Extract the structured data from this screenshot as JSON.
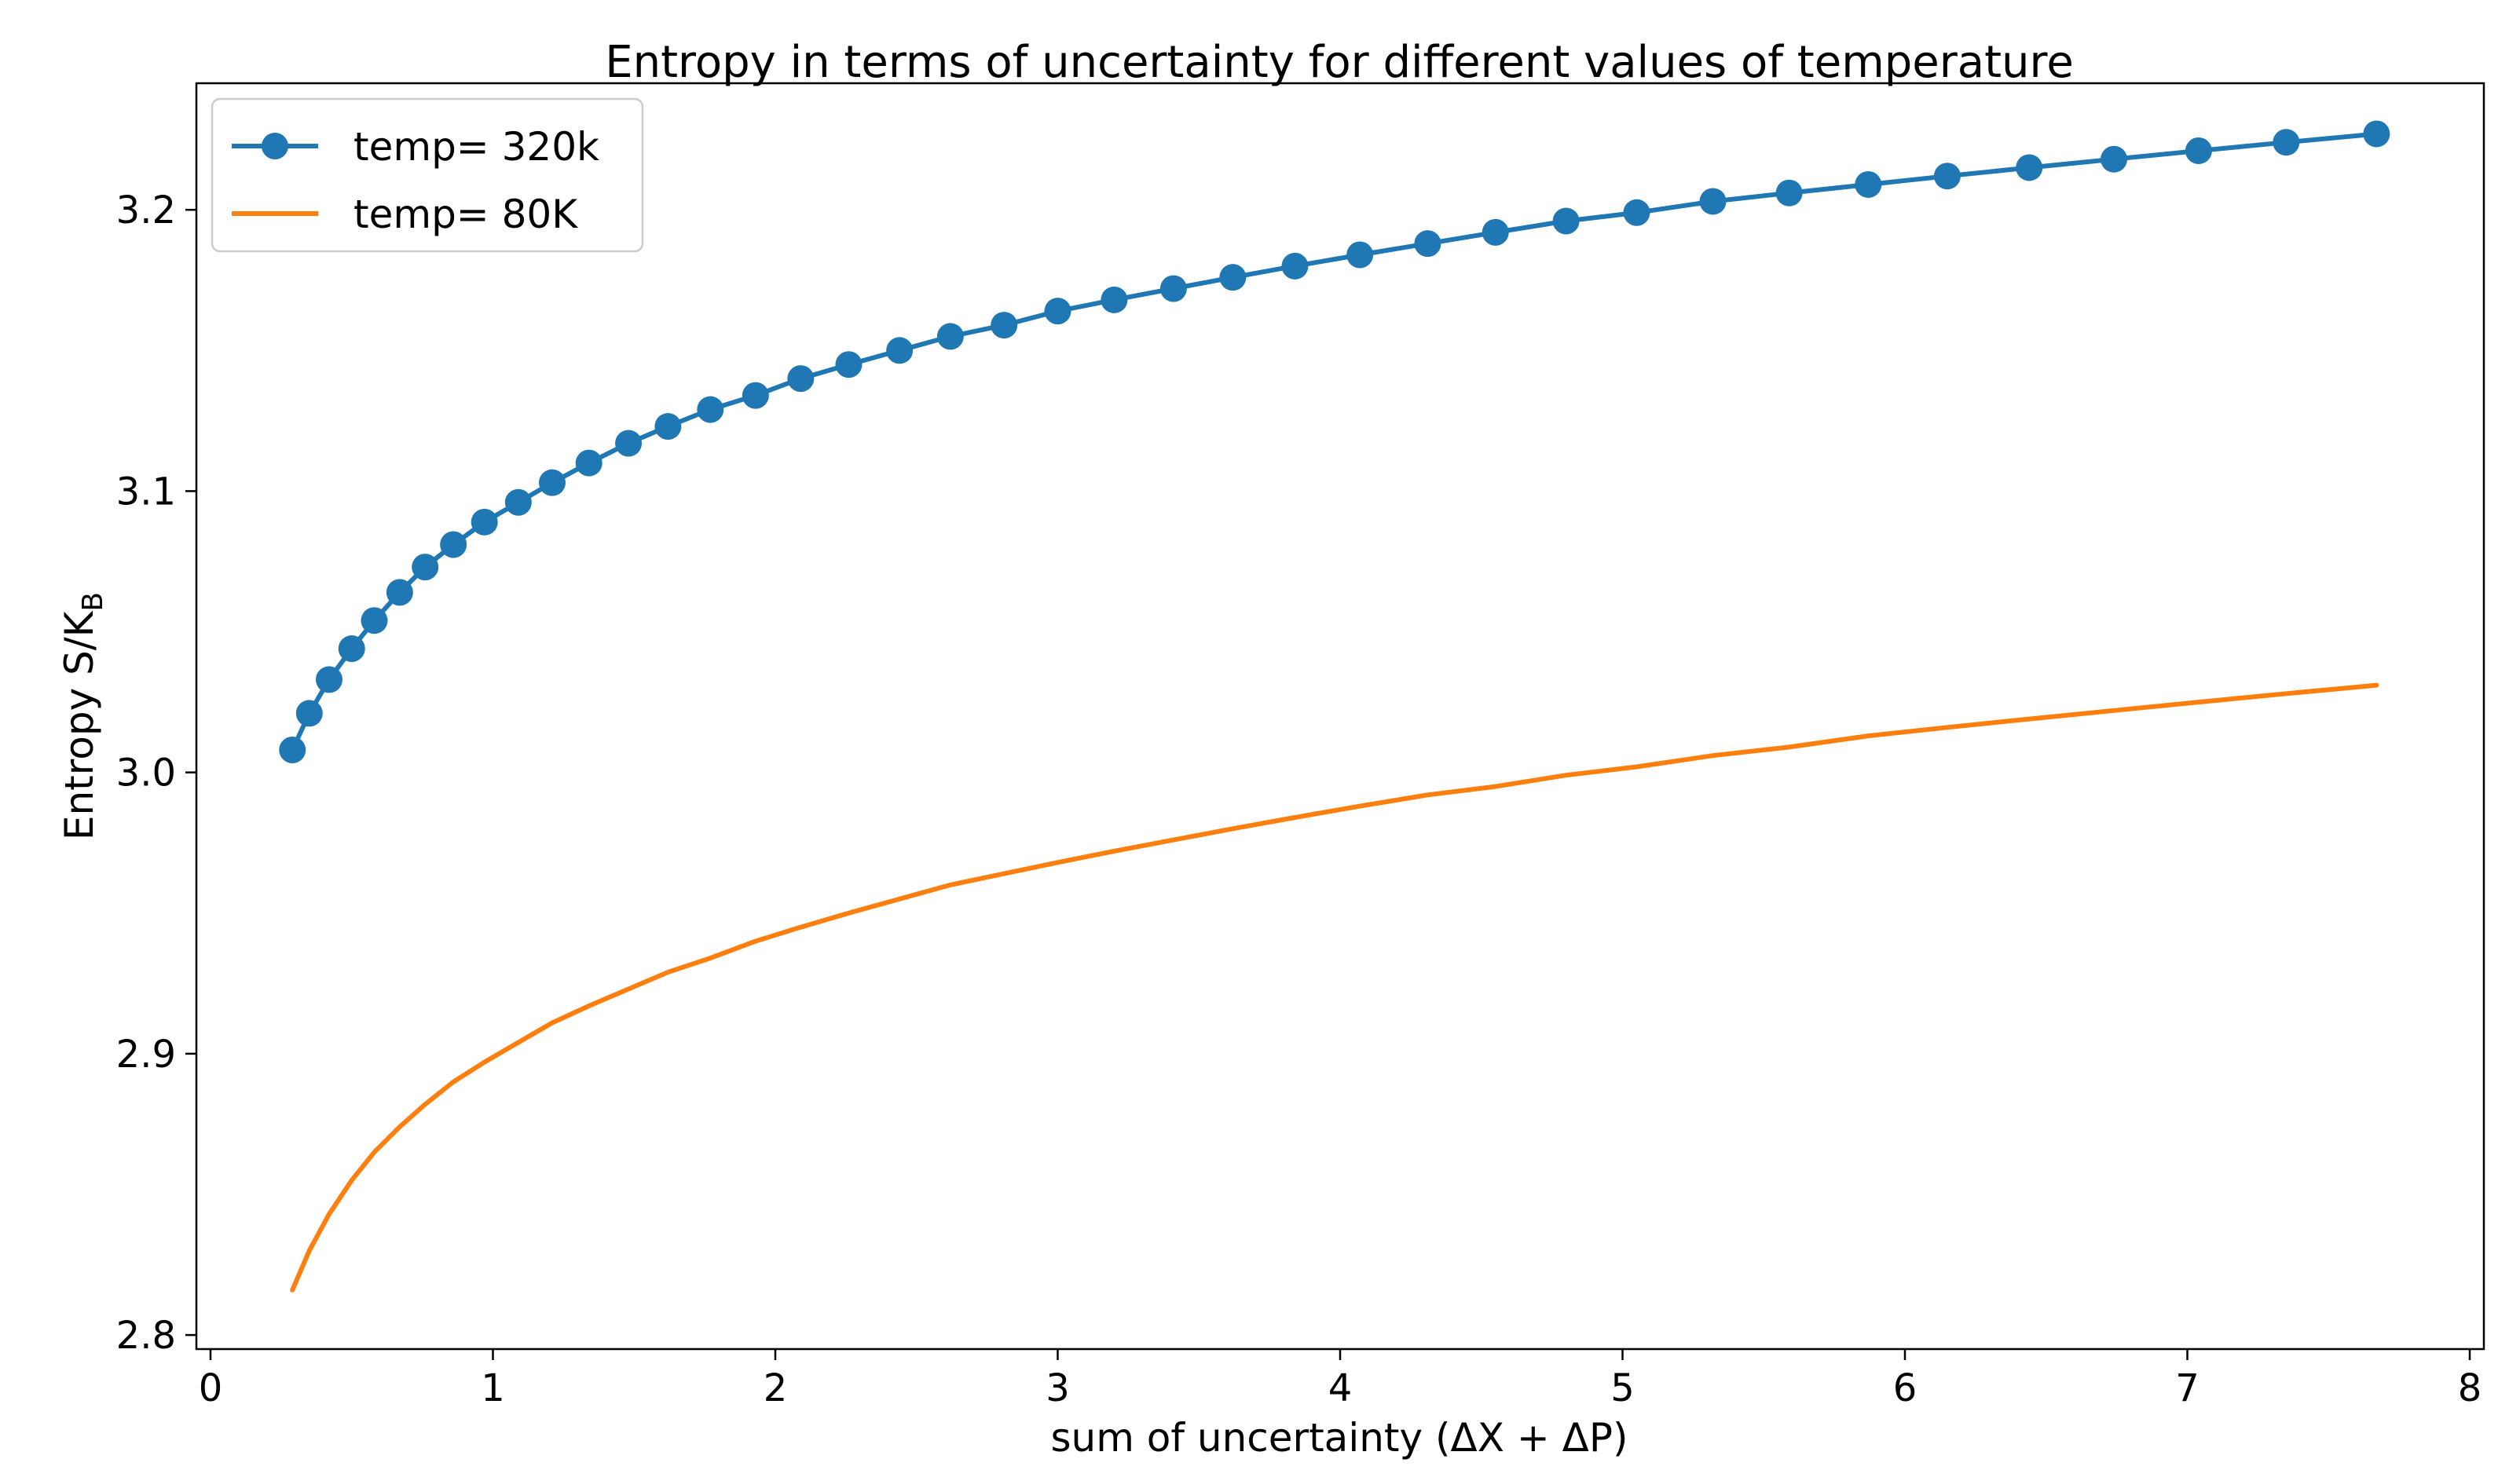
{
  "chart_data": {
    "type": "line",
    "title": "Entropy in terms of uncertainty for different values of temperature",
    "xlabel": "sum of uncertainty (ΔX + ΔP)",
    "ylabel": "Entropy S/K_B",
    "xlim": [
      -0.05,
      8.05
    ],
    "ylim": [
      2.795,
      3.245
    ],
    "xticks": [
      0,
      1,
      2,
      3,
      4,
      5,
      6,
      7,
      8
    ],
    "yticks": [
      2.8,
      2.9,
      3.0,
      3.1,
      3.2
    ],
    "ytick_labels": [
      "2.8",
      "2.9",
      "3.0",
      "3.1",
      "3.2"
    ],
    "grid": false,
    "legend_position": "top-left",
    "series": [
      {
        "name": "temp= 320k",
        "color": "#1f77b4",
        "marker": "circle",
        "x": [
          0.29,
          0.35,
          0.42,
          0.5,
          0.58,
          0.67,
          0.76,
          0.86,
          0.97,
          1.09,
          1.21,
          1.34,
          1.48,
          1.62,
          1.77,
          1.93,
          2.09,
          2.26,
          2.44,
          2.62,
          2.81,
          3.0,
          3.2,
          3.41,
          3.62,
          3.84,
          4.07,
          4.31,
          4.55,
          4.8,
          5.05,
          5.32,
          5.59,
          5.87,
          6.15,
          6.44,
          6.74,
          7.04,
          7.35,
          7.67
        ],
        "y": [
          3.008,
          3.021,
          3.033,
          3.044,
          3.054,
          3.064,
          3.073,
          3.081,
          3.089,
          3.096,
          3.103,
          3.11,
          3.117,
          3.123,
          3.129,
          3.134,
          3.14,
          3.145,
          3.15,
          3.155,
          3.159,
          3.164,
          3.168,
          3.172,
          3.176,
          3.18,
          3.184,
          3.188,
          3.192,
          3.196,
          3.199,
          3.203,
          3.206,
          3.209,
          3.212,
          3.215,
          3.218,
          3.221,
          3.224,
          3.227
        ]
      },
      {
        "name": "temp= 80K",
        "color": "#ff7f0e",
        "marker": "none",
        "x": [
          0.29,
          0.35,
          0.42,
          0.5,
          0.58,
          0.67,
          0.76,
          0.86,
          0.97,
          1.09,
          1.21,
          1.34,
          1.48,
          1.62,
          1.77,
          1.93,
          2.09,
          2.26,
          2.44,
          2.62,
          2.81,
          3.0,
          3.2,
          3.41,
          3.62,
          3.84,
          4.07,
          4.31,
          4.55,
          4.8,
          5.05,
          5.32,
          5.59,
          5.87,
          6.15,
          6.44,
          6.74,
          7.04,
          7.35,
          7.67
        ],
        "y": [
          2.816,
          2.83,
          2.843,
          2.855,
          2.865,
          2.874,
          2.882,
          2.89,
          2.897,
          2.904,
          2.911,
          2.917,
          2.923,
          2.929,
          2.934,
          2.94,
          2.945,
          2.95,
          2.955,
          2.96,
          2.964,
          2.968,
          2.972,
          2.976,
          2.98,
          2.984,
          2.988,
          2.992,
          2.995,
          2.999,
          3.002,
          3.006,
          3.009,
          3.013,
          3.016,
          3.019,
          3.022,
          3.025,
          3.028,
          3.031
        ]
      }
    ]
  }
}
